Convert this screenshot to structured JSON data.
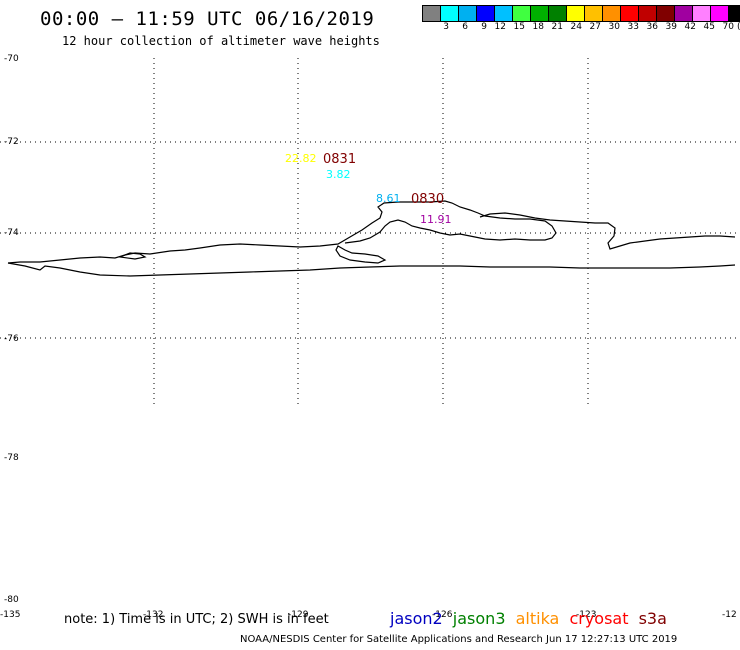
{
  "header": {
    "title": "00:00 – 11:59 UTC 06/16/2019",
    "subtitle": "12 hour collection of altimeter wave heights"
  },
  "legend": {
    "colors": [
      "#808080",
      "#00ffff",
      "#00b0f0",
      "#0000ff",
      "#00c0ff",
      "#40ff40",
      "#00b000",
      "#008000",
      "#ffff00",
      "#ffc000",
      "#ff9000",
      "#ff0000",
      "#c00000",
      "#800000",
      "#a000a0",
      "#ff80ff",
      "#ff00ff",
      "#000000"
    ],
    "labels": [
      "3",
      "6",
      "9",
      "12",
      "15",
      "18",
      "21",
      "24",
      "27",
      "30",
      "33",
      "36",
      "39",
      "42",
      "45",
      "70"
    ],
    "unit": "(ft)"
  },
  "map": {
    "lat_labels": [
      "-70",
      "-72",
      "-74",
      "-76",
      "-78",
      "-80"
    ],
    "lon_labels": [
      "-135",
      "-132",
      "-129",
      "-126",
      "-123",
      "-12"
    ],
    "observations": [
      {
        "value": "22.82",
        "color": "#ffff00"
      },
      {
        "value": "3.82",
        "color": "#00ffff"
      },
      {
        "value": "8.61",
        "color": "#00b0f0"
      },
      {
        "value": "11.91",
        "color": "#a000a0"
      }
    ],
    "times": [
      {
        "value": "0831",
        "color": "#800000"
      },
      {
        "value": "0830",
        "color": "#800000"
      }
    ]
  },
  "note": "note: 1) Time is in UTC; 2) SWH is in feet",
  "satellites": [
    {
      "name": "jason2",
      "color": "#0000c0"
    },
    {
      "name": "jason3",
      "color": "#008000"
    },
    {
      "name": "altika",
      "color": "#ff9000"
    },
    {
      "name": "cryosat",
      "color": "#ff0000"
    },
    {
      "name": "s3a",
      "color": "#800000"
    }
  ],
  "footer": "NOAA/NESDIS Center for Satellite Applications and Research   Jun 17 12:27:13 UTC 2019"
}
